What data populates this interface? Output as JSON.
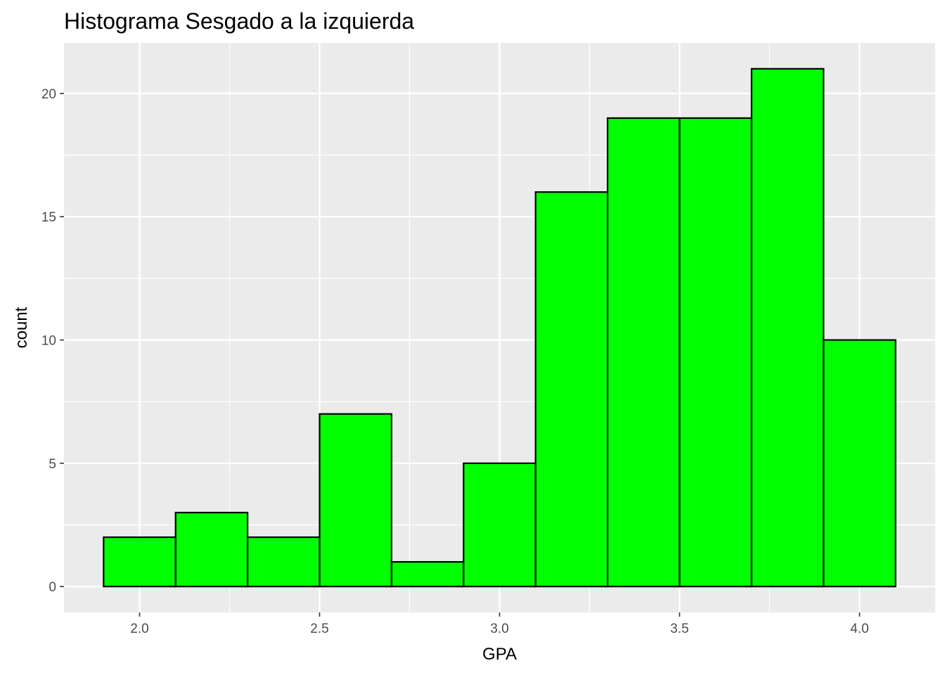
{
  "chart_data": {
    "type": "bar",
    "title": "Histograma Sesgado a la izquierda",
    "xlabel": "GPA",
    "ylabel": "count",
    "bins": [
      {
        "x0": 1.9,
        "x1": 2.1,
        "count": 2
      },
      {
        "x0": 2.1,
        "x1": 2.3,
        "count": 3
      },
      {
        "x0": 2.3,
        "x1": 2.5,
        "count": 2
      },
      {
        "x0": 2.5,
        "x1": 2.7,
        "count": 7
      },
      {
        "x0": 2.7,
        "x1": 2.9,
        "count": 1
      },
      {
        "x0": 2.9,
        "x1": 3.1,
        "count": 5
      },
      {
        "x0": 3.1,
        "x1": 3.3,
        "count": 16
      },
      {
        "x0": 3.3,
        "x1": 3.5,
        "count": 19
      },
      {
        "x0": 3.5,
        "x1": 3.7,
        "count": 19
      },
      {
        "x0": 3.7,
        "x1": 3.9,
        "count": 21
      },
      {
        "x0": 3.9,
        "x1": 4.1,
        "count": 10
      }
    ],
    "xlim": [
      1.79,
      4.21
    ],
    "ylim": [
      -1.05,
      22.05
    ],
    "x_ticks": [
      "2.0",
      "2.5",
      "3.0",
      "3.5",
      "4.0"
    ],
    "y_ticks": [
      "0",
      "5",
      "10",
      "15",
      "20"
    ],
    "grid": true,
    "colors": {
      "bar_fill": "#00ff00",
      "bar_outline": "#000000",
      "panel": "#ebebeb",
      "grid": "#ffffff"
    }
  }
}
